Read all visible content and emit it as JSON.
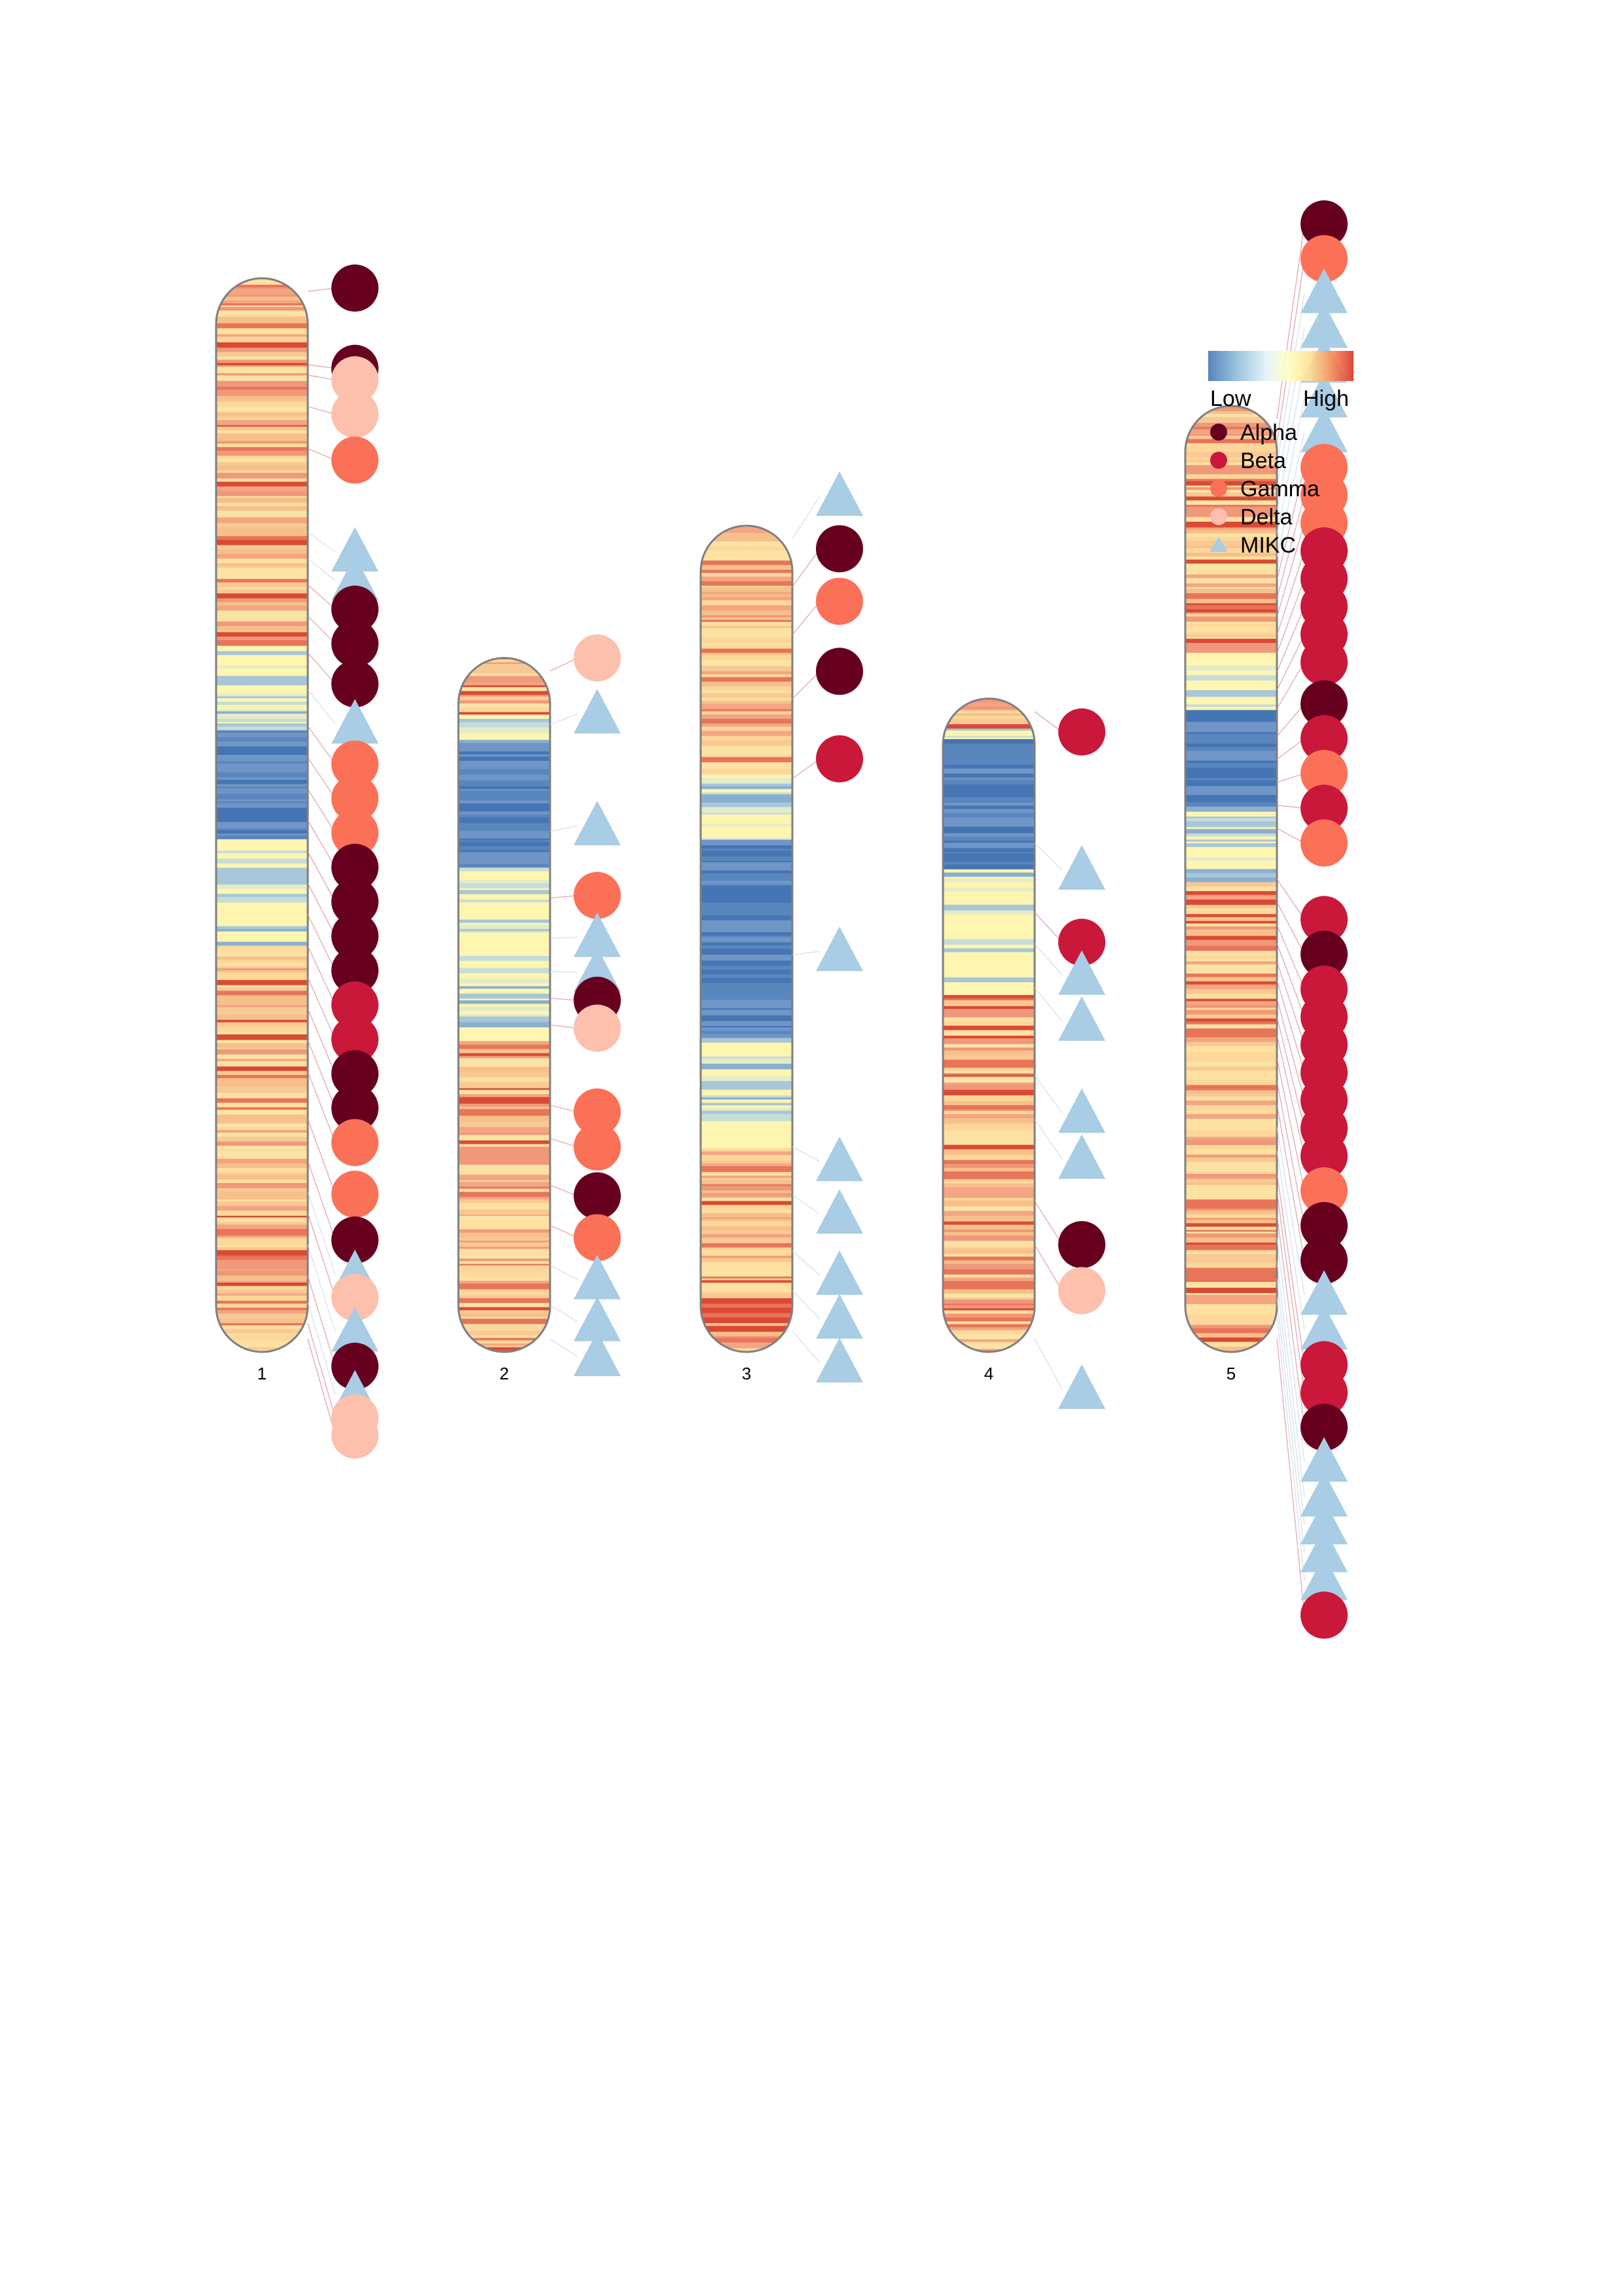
{
  "legend": {
    "low_label": "Low",
    "high_label": "High",
    "gradient_colors": [
      "#4575b4",
      "#91bfdb",
      "#e0f3f8",
      "#ffffbf",
      "#fee090",
      "#fc8d59",
      "#d73027"
    ],
    "categories": [
      {
        "label": "Alpha",
        "color": "#67001f",
        "shape": "circle"
      },
      {
        "label": "Beta",
        "color": "#c9183a",
        "shape": "circle"
      },
      {
        "label": "Gamma",
        "color": "#fb7158",
        "shape": "circle"
      },
      {
        "label": "Delta",
        "color": "#fcc0ad",
        "shape": "circle"
      },
      {
        "label": "MIKC",
        "color": "#a8cde4",
        "shape": "triangle"
      }
    ]
  },
  "chromosomes": [
    {
      "label": "1",
      "markers": [
        {
          "type": "Alpha",
          "pos": 0.0
        },
        {
          "type": "Alpha",
          "pos": 0.07
        },
        {
          "type": "Delta",
          "pos": 0.08
        },
        {
          "type": "Delta",
          "pos": 0.11
        },
        {
          "type": "Gamma",
          "pos": 0.15
        },
        {
          "type": "MIKC",
          "pos": 0.23
        },
        {
          "type": "MIKC",
          "pos": 0.255
        },
        {
          "type": "Alpha",
          "pos": 0.28
        },
        {
          "type": "Alpha",
          "pos": 0.31
        },
        {
          "type": "Alpha",
          "pos": 0.345
        },
        {
          "type": "MIKC",
          "pos": 0.38
        },
        {
          "type": "Gamma",
          "pos": 0.415
        },
        {
          "type": "Gamma",
          "pos": 0.445
        },
        {
          "type": "Gamma",
          "pos": 0.475
        },
        {
          "type": "Alpha",
          "pos": 0.505
        },
        {
          "type": "Alpha",
          "pos": 0.535
        },
        {
          "type": "Alpha",
          "pos": 0.565
        },
        {
          "type": "Alpha",
          "pos": 0.595
        },
        {
          "type": "Beta",
          "pos": 0.625
        },
        {
          "type": "Beta",
          "pos": 0.655
        },
        {
          "type": "Alpha",
          "pos": 0.685
        },
        {
          "type": "Alpha",
          "pos": 0.715
        },
        {
          "type": "Gamma",
          "pos": 0.745
        },
        {
          "type": "Gamma",
          "pos": 0.79
        },
        {
          "type": "Alpha",
          "pos": 0.83
        },
        {
          "type": "MIKC",
          "pos": 0.86
        },
        {
          "type": "Delta",
          "pos": 0.88
        },
        {
          "type": "MIKC",
          "pos": 0.91
        },
        {
          "type": "Alpha",
          "pos": 0.94
        },
        {
          "type": "MIKC",
          "pos": 0.965
        },
        {
          "type": "Delta",
          "pos": 0.985
        },
        {
          "type": "Delta",
          "pos": 1.0
        }
      ]
    },
    {
      "label": "2",
      "markers": [
        {
          "type": "Delta",
          "pos": 0.0
        },
        {
          "type": "MIKC",
          "pos": 0.08
        },
        {
          "type": "MIKC",
          "pos": 0.24
        },
        {
          "type": "Gamma",
          "pos": 0.34
        },
        {
          "type": "MIKC",
          "pos": 0.4
        },
        {
          "type": "MIKC",
          "pos": 0.45
        },
        {
          "type": "Alpha",
          "pos": 0.49
        },
        {
          "type": "Delta",
          "pos": 0.53
        },
        {
          "type": "Gamma",
          "pos": 0.65
        },
        {
          "type": "Gamma",
          "pos": 0.7
        },
        {
          "type": "Alpha",
          "pos": 0.77
        },
        {
          "type": "Gamma",
          "pos": 0.83
        },
        {
          "type": "MIKC",
          "pos": 0.89
        },
        {
          "type": "MIKC",
          "pos": 0.95
        },
        {
          "type": "MIKC",
          "pos": 1.0
        }
      ]
    },
    {
      "label": "3",
      "markers": [
        {
          "type": "MIKC",
          "pos": 0.0
        },
        {
          "type": "Alpha",
          "pos": 0.06
        },
        {
          "type": "Gamma",
          "pos": 0.12
        },
        {
          "type": "Alpha",
          "pos": 0.2
        },
        {
          "type": "Beta",
          "pos": 0.3
        },
        {
          "type": "MIKC",
          "pos": 0.52
        },
        {
          "type": "MIKC",
          "pos": 0.76
        },
        {
          "type": "MIKC",
          "pos": 0.82
        },
        {
          "type": "MIKC",
          "pos": 0.89
        },
        {
          "type": "MIKC",
          "pos": 0.94
        },
        {
          "type": "MIKC",
          "pos": 0.99
        }
      ]
    },
    {
      "label": "4",
      "markers": [
        {
          "type": "Beta",
          "pos": 0.0
        },
        {
          "type": "MIKC",
          "pos": 0.21
        },
        {
          "type": "Beta",
          "pos": 0.32
        },
        {
          "type": "MIKC",
          "pos": 0.37
        },
        {
          "type": "MIKC",
          "pos": 0.44
        },
        {
          "type": "MIKC",
          "pos": 0.58
        },
        {
          "type": "MIKC",
          "pos": 0.65
        },
        {
          "type": "Alpha",
          "pos": 0.78
        },
        {
          "type": "Delta",
          "pos": 0.85
        },
        {
          "type": "MIKC",
          "pos": 1.0
        }
      ]
    },
    {
      "label": "5",
      "markers": [
        {
          "type": "Alpha",
          "pos": 0.0
        },
        {
          "type": "Gamma",
          "pos": 0.025
        },
        {
          "type": "MIKC",
          "pos": 0.05
        },
        {
          "type": "MIKC",
          "pos": 0.075
        },
        {
          "type": "MIKC",
          "pos": 0.1
        },
        {
          "type": "MIKC",
          "pos": 0.125
        },
        {
          "type": "MIKC",
          "pos": 0.15
        },
        {
          "type": "Gamma",
          "pos": 0.175
        },
        {
          "type": "Gamma",
          "pos": 0.195
        },
        {
          "type": "Gamma",
          "pos": 0.215
        },
        {
          "type": "Beta",
          "pos": 0.235
        },
        {
          "type": "Beta",
          "pos": 0.255
        },
        {
          "type": "Beta",
          "pos": 0.275
        },
        {
          "type": "Beta",
          "pos": 0.295
        },
        {
          "type": "Beta",
          "pos": 0.315
        },
        {
          "type": "Alpha",
          "pos": 0.345
        },
        {
          "type": "Beta",
          "pos": 0.37
        },
        {
          "type": "Gamma",
          "pos": 0.395
        },
        {
          "type": "Beta",
          "pos": 0.42
        },
        {
          "type": "Gamma",
          "pos": 0.445
        },
        {
          "type": "Beta",
          "pos": 0.5
        },
        {
          "type": "Alpha",
          "pos": 0.525
        },
        {
          "type": "Beta",
          "pos": 0.55
        },
        {
          "type": "Beta",
          "pos": 0.57
        },
        {
          "type": "Beta",
          "pos": 0.59
        },
        {
          "type": "Beta",
          "pos": 0.61
        },
        {
          "type": "Beta",
          "pos": 0.63
        },
        {
          "type": "Beta",
          "pos": 0.65
        },
        {
          "type": "Beta",
          "pos": 0.67
        },
        {
          "type": "Gamma",
          "pos": 0.695
        },
        {
          "type": "Alpha",
          "pos": 0.72
        },
        {
          "type": "Alpha",
          "pos": 0.745
        },
        {
          "type": "MIKC",
          "pos": 0.77
        },
        {
          "type": "MIKC",
          "pos": 0.795
        },
        {
          "type": "Beta",
          "pos": 0.82
        },
        {
          "type": "Beta",
          "pos": 0.84
        },
        {
          "type": "Alpha",
          "pos": 0.865
        },
        {
          "type": "MIKC",
          "pos": 0.89
        },
        {
          "type": "MIKC",
          "pos": 0.915
        },
        {
          "type": "MIKC",
          "pos": 0.935
        },
        {
          "type": "MIKC",
          "pos": 0.955
        },
        {
          "type": "MIKC",
          "pos": 0.975
        },
        {
          "type": "Beta",
          "pos": 1.0
        }
      ]
    }
  ]
}
